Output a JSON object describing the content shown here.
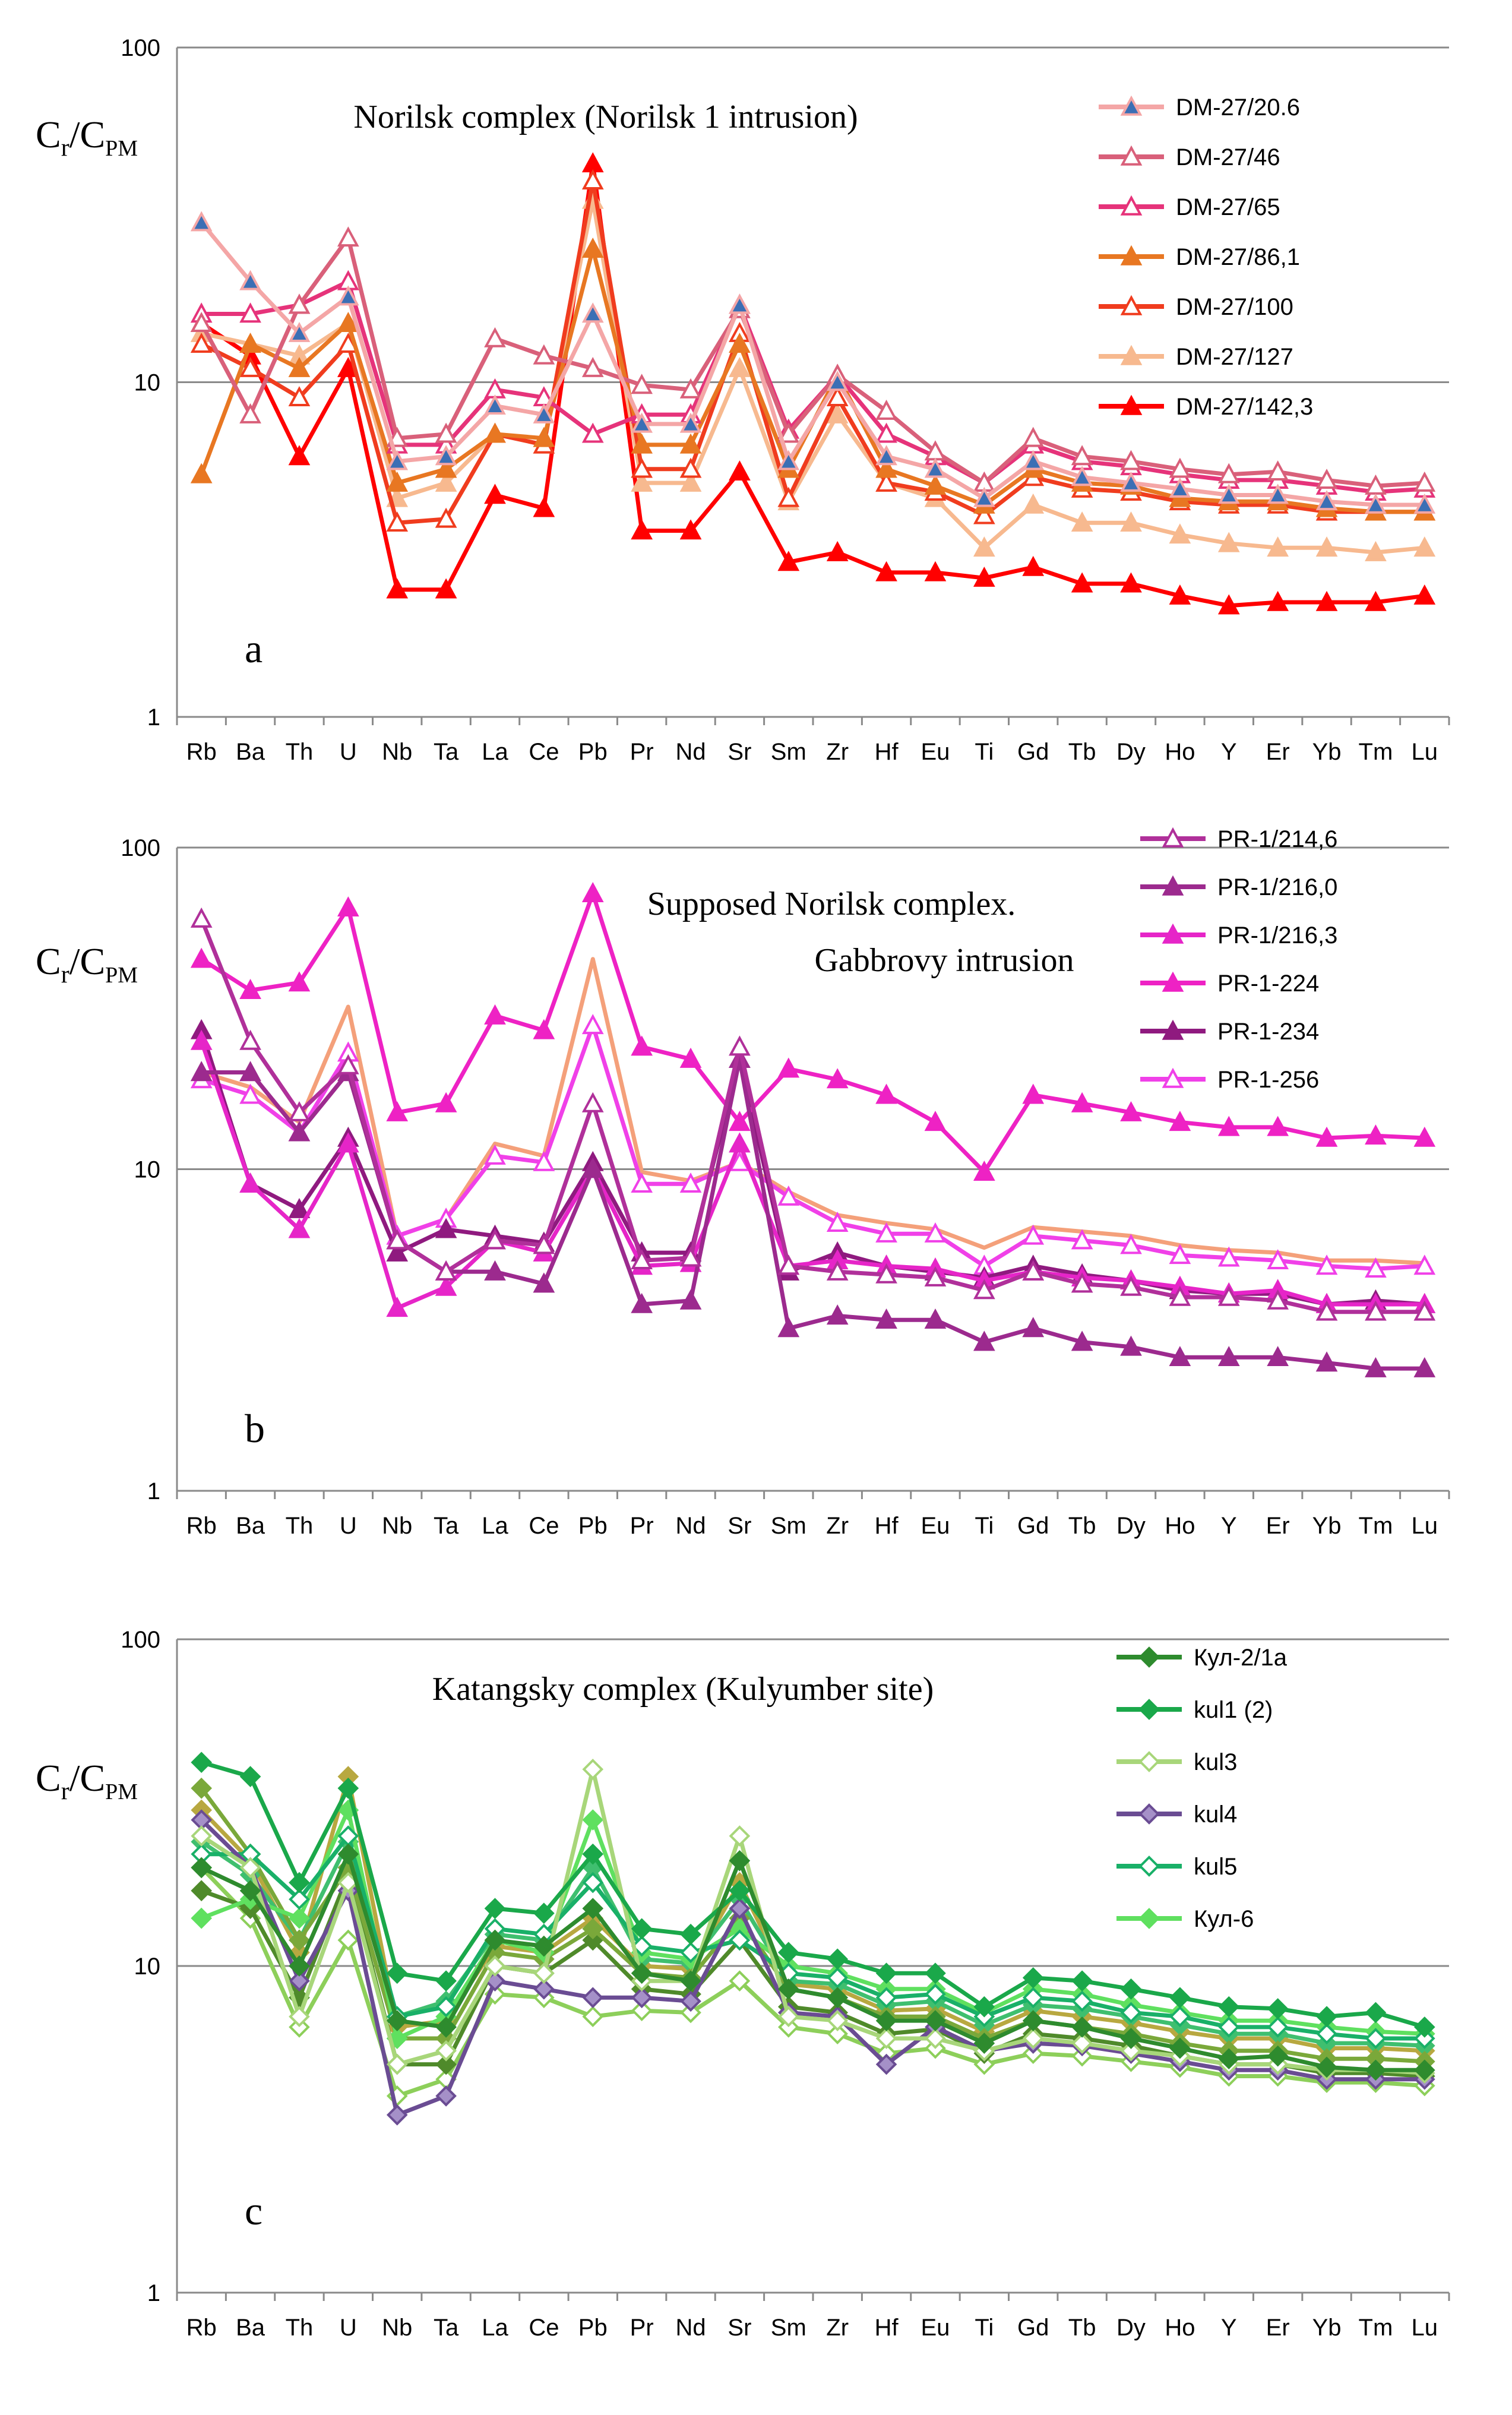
{
  "chart_data": [
    {
      "type": "line",
      "panel_letter": "a",
      "title": "Norilsk complex (Norilsk 1 intrusion)",
      "ylabel_main": "C",
      "ylabel_sub1": "r",
      "ylabel_mid": "/C",
      "ylabel_sub2": "PM",
      "yscale": "log",
      "ylim": [
        1,
        100
      ],
      "ytick_labels": [
        "1",
        "10",
        "100"
      ],
      "categories": [
        "Rb",
        "Ba",
        "Th",
        "U",
        "Nb",
        "Ta",
        "La",
        "Ce",
        "Pb",
        "Pr",
        "Nd",
        "Sr",
        "Sm",
        "Zr",
        "Hf",
        "Eu",
        "Ti",
        "Gd",
        "Tb",
        "Dy",
        "Ho",
        "Y",
        "Er",
        "Yb",
        "Tm",
        "Lu"
      ],
      "series": [
        {
          "name": "DM-27/20.6",
          "color": "#f4a6a6",
          "marker": "triangle-filled",
          "marker_color": "#3b6fb5",
          "values": [
            30,
            20,
            14,
            18,
            5.8,
            6,
            8.5,
            8,
            16,
            7.5,
            7.5,
            17,
            5.8,
            10,
            6,
            5.5,
            4.5,
            5.8,
            5.2,
            5,
            4.8,
            4.6,
            4.6,
            4.4,
            4.3,
            4.3
          ]
        },
        {
          "name": "DM-27/46",
          "color": "#d9607a",
          "marker": "triangle-open",
          "values": [
            15,
            8,
            17,
            27,
            6.8,
            7,
            13.5,
            12,
            11,
            9.8,
            9.5,
            16.5,
            7,
            10.5,
            8.2,
            6.2,
            5,
            6.8,
            6,
            5.8,
            5.5,
            5.3,
            5.4,
            5.1,
            4.9,
            5
          ]
        },
        {
          "name": "DM-27/65",
          "color": "#e6337a",
          "marker": "triangle-open",
          "values": [
            16,
            16,
            17,
            20,
            6.5,
            6.5,
            9.5,
            9,
            7,
            8,
            8,
            17,
            7.2,
            10.5,
            7,
            6,
            5,
            6.5,
            5.8,
            5.6,
            5.3,
            5.1,
            5.1,
            4.9,
            4.7,
            4.8
          ]
        },
        {
          "name": "DM-27/86,1",
          "color": "#e87722",
          "marker": "triangle-filled",
          "values": [
            5.3,
            13,
            11,
            15,
            5,
            5.5,
            7,
            6.8,
            25,
            6.5,
            6.5,
            13,
            5.5,
            10.5,
            5.5,
            4.9,
            4.3,
            5.5,
            5,
            4.9,
            4.5,
            4.4,
            4.4,
            4.2,
            4.1,
            4.1
          ]
        },
        {
          "name": "DM-27/100",
          "color": "#f03c1e",
          "marker": "triangle-open",
          "values": [
            13,
            11,
            9,
            13,
            3.8,
            3.9,
            7,
            6.5,
            40,
            5.5,
            5.5,
            14,
            4.5,
            9,
            5,
            4.7,
            4,
            5.2,
            4.8,
            4.7,
            4.4,
            4.3,
            4.3,
            4.1,
            4.1,
            4.1
          ]
        },
        {
          "name": "DM-27/127",
          "color": "#f7b98f",
          "marker": "triangle-filled",
          "values": [
            14,
            13,
            12,
            15,
            4.5,
            5,
            7,
            6.5,
            35,
            5,
            5,
            11,
            4.4,
            8,
            5,
            4.5,
            3.2,
            4.3,
            3.8,
            3.8,
            3.5,
            3.3,
            3.2,
            3.2,
            3.1,
            3.2
          ]
        },
        {
          "name": "DM-27/142,3",
          "color": "#ff0000",
          "marker": "triangle-filled",
          "values": [
            15,
            12,
            6,
            11,
            2.4,
            2.4,
            4.6,
            4.2,
            45,
            3.6,
            3.6,
            5.4,
            2.9,
            3.1,
            2.7,
            2.7,
            2.6,
            2.8,
            2.5,
            2.5,
            2.3,
            2.15,
            2.2,
            2.2,
            2.2,
            2.3
          ]
        }
      ]
    },
    {
      "type": "line",
      "panel_letter": "b",
      "title": "Supposed Norilsk complex.",
      "title_line2": "Gabbrovy intrusion",
      "ylabel_main": "C",
      "ylabel_sub1": "r",
      "ylabel_mid": "/C",
      "ylabel_sub2": "PM",
      "yscale": "log",
      "ylim": [
        1,
        100
      ],
      "ytick_labels": [
        "1",
        "10",
        "100"
      ],
      "categories": [
        "Rb",
        "Ba",
        "Th",
        "U",
        "Nb",
        "Ta",
        "La",
        "Ce",
        "Pb",
        "Pr",
        "Nd",
        "Sr",
        "Sm",
        "Zr",
        "Hf",
        "Eu",
        "Ti",
        "Gd",
        "Tb",
        "Dy",
        "Ho",
        "Y",
        "Er",
        "Yb",
        "Tm",
        "Lu"
      ],
      "series": [
        {
          "name": "PR-1/214,6",
          "color": "#b0309a",
          "marker": "triangle-open",
          "marker_color": "#7fa0d8",
          "values": [
            60,
            25,
            15,
            21,
            6,
            4.8,
            6,
            5.8,
            16,
            5.2,
            5.3,
            24,
            5,
            4.8,
            4.7,
            4.6,
            4.2,
            4.8,
            4.4,
            4.3,
            4,
            4,
            3.9,
            3.6,
            3.6,
            3.6
          ]
        },
        {
          "name": "PR-1/216,0",
          "color": "#9c2a8e",
          "marker": "triangle-filled",
          "values": [
            20,
            20,
            13,
            20,
            6,
            4.8,
            4.8,
            4.4,
            10,
            3.8,
            3.9,
            22,
            3.2,
            3.5,
            3.4,
            3.4,
            2.9,
            3.2,
            2.9,
            2.8,
            2.6,
            2.6,
            2.6,
            2.5,
            2.4,
            2.4
          ]
        },
        {
          "name": "PR-1/216,3",
          "color": "#e625c8",
          "marker": "triangle-filled",
          "values": [
            25,
            9,
            6.5,
            12,
            3.7,
            4.3,
            6,
            5.5,
            10,
            5,
            5.1,
            12,
            5,
            5.2,
            5,
            4.9,
            4.5,
            4.8,
            4.6,
            4.5,
            4.3,
            4.1,
            4.2,
            3.8,
            3.8,
            3.8
          ]
        },
        {
          "name": "PR-1-224",
          "color": "#ee22c4",
          "marker": "triangle-filled",
          "values": [
            45,
            36,
            38,
            65,
            15,
            16,
            30,
            27,
            72,
            24,
            22,
            14,
            20.5,
            19,
            17,
            14,
            9.8,
            17,
            16,
            15,
            14,
            13.5,
            13.5,
            12.5,
            12.7,
            12.5
          ]
        },
        {
          "name": "PR-1-234",
          "color": "#8f1a7f",
          "marker": "triangle-filled",
          "values": [
            27,
            9,
            7.5,
            12.5,
            5.5,
            6.5,
            6.2,
            5.9,
            10.5,
            5.5,
            5.5,
            22,
            4.8,
            5.5,
            5,
            4.8,
            4.6,
            5,
            4.7,
            4.5,
            4.2,
            4.1,
            4.1,
            3.8,
            3.9,
            3.8
          ]
        },
        {
          "name": "PR-1-256",
          "color": "#f040e8",
          "marker": "triangle-open",
          "values": [
            19,
            17,
            13,
            23,
            6.2,
            7,
            11,
            10.5,
            28,
            9,
            9,
            10.5,
            8.2,
            6.8,
            6.3,
            6.3,
            5,
            6.2,
            6,
            5.8,
            5.4,
            5.3,
            5.2,
            5,
            4.9,
            5
          ]
        },
        {
          "name": "",
          "color": "#f4a07a",
          "marker": "none",
          "values": [
            20,
            18,
            14,
            32,
            6.2,
            7,
            12,
            11,
            45,
            9.8,
            9.2,
            10.5,
            8.5,
            7.2,
            6.8,
            6.5,
            5.7,
            6.6,
            6.4,
            6.2,
            5.8,
            5.6,
            5.5,
            5.2,
            5.2,
            5.1
          ]
        }
      ]
    },
    {
      "type": "line",
      "panel_letter": "c",
      "title": "Katangsky complex (Kulyumber site)",
      "ylabel_main": "C",
      "ylabel_sub1": "r",
      "ylabel_mid": "/C",
      "ylabel_sub2": "PM",
      "yscale": "log",
      "ylim": [
        1,
        100
      ],
      "ytick_labels": [
        "1",
        "10",
        "100"
      ],
      "categories": [
        "Rb",
        "Ba",
        "Th",
        "U",
        "Nb",
        "Ta",
        "La",
        "Ce",
        "Pb",
        "Pr",
        "Nd",
        "Sr",
        "Sm",
        "Zr",
        "Hf",
        "Eu",
        "Ti",
        "Gd",
        "Tb",
        "Dy",
        "Ho",
        "Y",
        "Er",
        "Yb",
        "Tm",
        "Lu"
      ],
      "series": [
        {
          "name": "Кул-2/1а",
          "color": "#2e8b2e",
          "marker": "diamond-filled",
          "values": [
            20,
            17,
            10,
            22,
            6.8,
            6.5,
            12,
            11.5,
            15,
            9.5,
            9,
            21,
            8.5,
            8,
            6.8,
            6.8,
            5.8,
            6.8,
            6.5,
            6,
            5.6,
            5.2,
            5.3,
            4.9,
            4.8,
            4.8
          ]
        },
        {
          "name": "kul1 (2)",
          "color": "#1aa84a",
          "marker": "diamond-filled",
          "values": [
            42,
            38,
            18,
            35,
            9.5,
            9,
            15,
            14.5,
            22,
            13,
            12.5,
            17,
            11,
            10.5,
            9.5,
            9.5,
            7.5,
            9.2,
            9,
            8.5,
            8,
            7.5,
            7.4,
            7,
            7.2,
            6.5
          ]
        },
        {
          "name": "kul3",
          "color": "#a8d67a",
          "marker": "diamond-open",
          "values": [
            25,
            20,
            7,
            18,
            5,
            5.5,
            10,
            9.5,
            40,
            9,
            9,
            25,
            7,
            6.8,
            6,
            6,
            5.5,
            6,
            5.8,
            5.5,
            5.3,
            5,
            5,
            4.8,
            4.8,
            4.7
          ]
        },
        {
          "name": "kul4",
          "color": "#6a4c93",
          "marker": "diamond-filled",
          "marker_color": "#a590c8",
          "values": [
            28,
            20,
            9,
            17,
            3.5,
            4,
            9,
            8.5,
            8,
            8,
            7.8,
            15,
            7.2,
            7,
            5,
            6.5,
            5.5,
            5.8,
            5.7,
            5.4,
            5.1,
            4.8,
            4.8,
            4.5,
            4.5,
            4.5
          ]
        },
        {
          "name": "kul5",
          "color": "#19b068",
          "marker": "diamond-open",
          "values": [
            22,
            22,
            16,
            25,
            7,
            7.5,
            13,
            12.5,
            18,
            11.5,
            11,
            12,
            9.5,
            9.2,
            8,
            8.2,
            7,
            8,
            7.8,
            7.2,
            7,
            6.5,
            6.5,
            6.2,
            6,
            6
          ]
        },
        {
          "name": "Кул-6",
          "color": "#5fe05f",
          "marker": "diamond-filled",
          "values": [
            14,
            16,
            14,
            30,
            6,
            7,
            12,
            11,
            28,
            11,
            10.5,
            13,
            10,
            9.5,
            8.5,
            8.5,
            7.2,
            8.5,
            8.2,
            7.6,
            7.2,
            6.8,
            6.8,
            6.5,
            6.3,
            6.2
          ]
        },
        {
          "name": "",
          "color": "#7aa83a",
          "marker": "diamond-filled",
          "values": [
            35,
            22,
            12,
            20,
            6,
            6,
            11,
            10.5,
            13,
            9.5,
            9.2,
            14,
            8.5,
            8,
            7,
            7,
            6,
            6.8,
            6.5,
            6.2,
            5.8,
            5.5,
            5.5,
            5.2,
            5.2,
            5.1
          ]
        },
        {
          "name": "",
          "color": "#4f8a2a",
          "marker": "diamond-filled",
          "values": [
            17,
            15,
            8,
            19,
            5,
            5,
            10,
            9.5,
            12,
            8.5,
            8.2,
            12,
            7.5,
            7.2,
            6.2,
            6.4,
            5.4,
            6.2,
            6,
            5.7,
            5.3,
            5,
            5,
            4.7,
            4.7,
            4.6
          ]
        },
        {
          "name": "",
          "color": "#8dcf5a",
          "marker": "diamond-open",
          "values": [
            20,
            14,
            6.5,
            12,
            4,
            4.5,
            8.2,
            8,
            7,
            7.3,
            7.2,
            9,
            6.5,
            6.2,
            5.4,
            5.6,
            5,
            5.4,
            5.3,
            5.1,
            4.9,
            4.6,
            4.6,
            4.4,
            4.4,
            4.3
          ]
        },
        {
          "name": "",
          "color": "#3fbf6f",
          "marker": "diamond-filled",
          "values": [
            24,
            19,
            12,
            24,
            7,
            7.8,
            12.5,
            12,
            20,
            10.5,
            10.2,
            16,
            9,
            8.8,
            7.6,
            7.8,
            6.6,
            7.6,
            7.4,
            7,
            6.6,
            6.2,
            6.2,
            5.8,
            5.8,
            5.7
          ]
        },
        {
          "name": "",
          "color": "#b8a840",
          "marker": "diamond-filled",
          "values": [
            30,
            21,
            11,
            38,
            6.5,
            6.8,
            11.5,
            11,
            14,
            10,
            9.8,
            18,
            8.8,
            8.5,
            7.3,
            7.4,
            6.3,
            7.3,
            7,
            6.7,
            6.3,
            6,
            6,
            5.6,
            5.6,
            5.5
          ]
        }
      ]
    }
  ]
}
